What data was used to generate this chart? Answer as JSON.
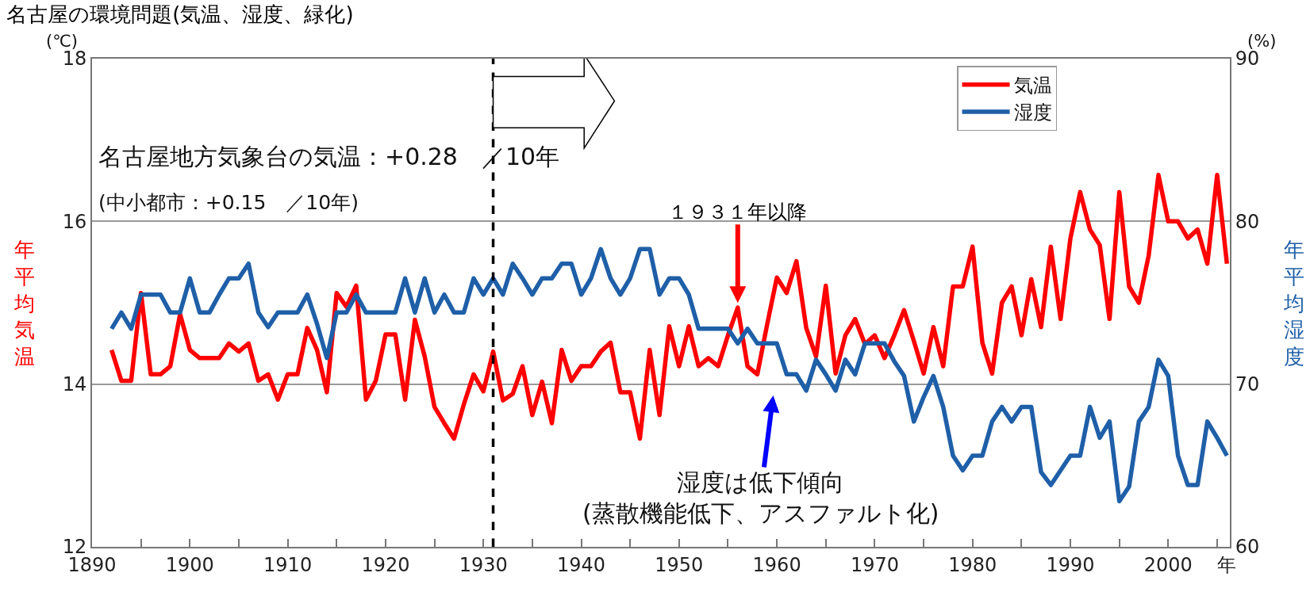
{
  "chart_data": {
    "type": "line",
    "title": "名古屋の環境問題(気温、湿度、緑化)",
    "xlabel": "年",
    "ylabel": "年平均気温",
    "y2label": "年平均湿度",
    "x": [
      1892,
      1893,
      1894,
      1895,
      1896,
      1897,
      1898,
      1899,
      1900,
      1901,
      1902,
      1903,
      1904,
      1905,
      1906,
      1907,
      1908,
      1909,
      1910,
      1911,
      1912,
      1913,
      1914,
      1915,
      1916,
      1917,
      1918,
      1919,
      1920,
      1921,
      1922,
      1923,
      1924,
      1925,
      1926,
      1927,
      1928,
      1929,
      1930,
      1931,
      1932,
      1933,
      1934,
      1935,
      1936,
      1937,
      1938,
      1939,
      1940,
      1941,
      1942,
      1943,
      1944,
      1945,
      1946,
      1947,
      1948,
      1949,
      1950,
      1951,
      1952,
      1953,
      1954,
      1955,
      1956,
      1957,
      1958,
      1959,
      1960,
      1961,
      1962,
      1963,
      1964,
      1965,
      1966,
      1967,
      1968,
      1969,
      1970,
      1971,
      1972,
      1973,
      1974,
      1975,
      1976,
      1977,
      1978,
      1979,
      1980,
      1981,
      1982,
      1983,
      1984,
      1985,
      1986,
      1987,
      1988,
      1989,
      1990,
      1991,
      1992,
      1993,
      1994,
      1995,
      1996,
      1997,
      1998,
      1999,
      2000,
      2001,
      2002,
      2003,
      2004,
      2005,
      2006
    ],
    "xlim": [
      1890,
      2006.3
    ],
    "xticks": [
      1890,
      {
        "value": 1895,
        "label": null
      },
      1900,
      {
        "value": 1905,
        "label": null
      },
      1910,
      {
        "value": 1915,
        "label": null
      },
      1920,
      {
        "value": 1925,
        "label": null
      },
      1930,
      {
        "value": 1935,
        "label": null
      },
      1940,
      {
        "value": 1945,
        "label": null
      },
      1950,
      {
        "value": 1955,
        "label": null
      },
      1960,
      {
        "value": 1965,
        "label": null
      },
      1970,
      {
        "value": 1975,
        "label": null
      },
      1980,
      {
        "value": 1985,
        "label": null
      },
      1990,
      {
        "value": 1995,
        "label": null
      },
      2000,
      {
        "value": 2005,
        "label": null
      }
    ],
    "ylim": [
      12,
      18
    ],
    "yticks": [
      12,
      14,
      16,
      18
    ],
    "y2lim": [
      60,
      90
    ],
    "y2ticks": [
      60,
      70,
      80,
      90
    ],
    "grid": "y",
    "legend": "top right",
    "marker": "none",
    "line_style": "solid",
    "series": [
      {
        "name": "気温",
        "color": "#ff0000",
        "values": [
          14.42,
          14.04,
          14.04,
          15.12,
          14.12,
          14.12,
          14.22,
          14.86,
          14.42,
          14.32,
          14.32,
          14.32,
          14.5,
          14.4,
          14.5,
          14.04,
          14.12,
          13.81,
          14.12,
          14.12,
          14.69,
          14.42,
          13.9,
          15.12,
          14.95,
          15.21,
          13.81,
          14.04,
          14.61,
          14.61,
          13.81,
          14.79,
          14.34,
          13.72,
          13.52,
          13.33,
          13.75,
          14.12,
          13.91,
          14.4,
          13.8,
          13.88,
          14.22,
          13.62,
          14.03,
          13.52,
          14.42,
          14.04,
          14.22,
          14.22,
          14.4,
          14.51,
          13.9,
          13.9,
          13.33,
          14.42,
          13.62,
          14.71,
          14.22,
          14.71,
          14.22,
          14.32,
          14.22,
          14.6,
          14.94,
          14.22,
          14.12,
          14.73,
          15.31,
          15.12,
          15.51,
          14.69,
          14.34,
          15.21,
          14.13,
          14.6,
          14.8,
          14.49,
          14.6,
          14.32,
          14.6,
          14.91,
          14.53,
          14.13,
          14.7,
          14.22,
          15.2,
          15.2,
          15.69,
          14.51,
          14.13,
          15.0,
          15.2,
          14.6,
          15.29,
          14.7,
          15.69,
          14.8,
          15.79,
          16.36,
          15.9,
          15.71,
          14.8,
          16.36,
          15.2,
          15.0,
          15.58,
          16.57,
          16.0,
          16.0,
          15.79,
          15.9,
          15.48,
          16.57,
          15.48
        ]
      },
      {
        "name": "湿度",
        "color": "#1f5fa8",
        "axis": "y2",
        "values": [
          73.4,
          74.4,
          73.4,
          75.5,
          75.5,
          75.5,
          74.4,
          74.4,
          76.5,
          74.4,
          74.4,
          75.5,
          76.5,
          76.5,
          77.4,
          74.4,
          73.5,
          74.4,
          74.4,
          74.4,
          75.5,
          73.7,
          71.6,
          74.4,
          74.4,
          75.5,
          74.4,
          74.4,
          74.4,
          74.4,
          76.5,
          74.4,
          76.5,
          74.4,
          75.5,
          74.4,
          74.4,
          76.5,
          75.5,
          76.5,
          75.5,
          77.4,
          76.5,
          75.5,
          76.5,
          76.5,
          77.4,
          77.4,
          75.5,
          76.5,
          78.3,
          76.5,
          75.5,
          76.5,
          78.3,
          78.3,
          75.5,
          76.5,
          76.5,
          75.5,
          73.4,
          73.4,
          73.4,
          73.4,
          72.5,
          73.4,
          72.5,
          72.5,
          72.5,
          70.6,
          70.6,
          69.6,
          71.5,
          70.6,
          69.6,
          71.5,
          70.6,
          72.5,
          72.5,
          72.5,
          71.4,
          70.5,
          67.7,
          69.2,
          70.5,
          68.6,
          65.6,
          64.7,
          65.6,
          65.6,
          67.7,
          68.6,
          67.7,
          68.6,
          68.6,
          64.6,
          63.8,
          64.7,
          65.6,
          65.6,
          68.6,
          66.7,
          67.7,
          62.8,
          63.7,
          67.7,
          68.6,
          71.5,
          70.5,
          65.6,
          63.8,
          63.8,
          67.7,
          66.7,
          65.6
        ]
      }
    ],
    "ref_lines": [
      {
        "axis": "x",
        "value": 1931,
        "color": "#000000",
        "line_style": "dashed"
      }
    ],
    "annotations": [
      "(℃)",
      "(%)",
      "名古屋地方気象台の気温：+0.28　／10年",
      "(中小都市：+0.15　／10年)",
      {
        "text": "１９３１年以降",
        "x": 1956,
        "y": 14.9
      },
      "湿度は低下傾向\n(蒸散機能低下、アスファルト化)"
    ]
  }
}
